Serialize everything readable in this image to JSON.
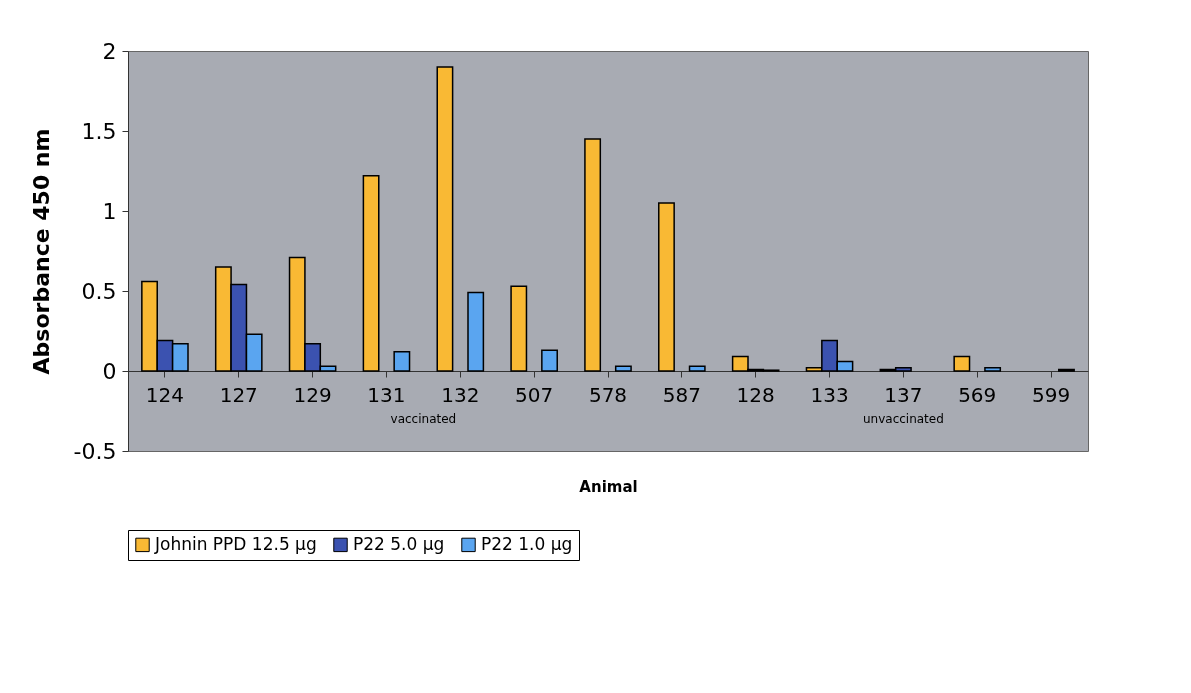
{
  "chart_data": {
    "type": "bar",
    "xlabel": "Animal",
    "ylabel": "Absorbance 450 nm",
    "categories": [
      "124",
      "127",
      "129",
      "131",
      "132",
      "507",
      "578",
      "587",
      "128",
      "133",
      "137",
      "569",
      "599"
    ],
    "series": [
      {
        "name": "Johnin PPD 12.5 µg",
        "color": "#f9b934",
        "values": [
          0.56,
          0.65,
          0.71,
          1.22,
          1.9,
          0.53,
          1.45,
          1.05,
          0.09,
          0.02,
          0.01,
          0.09,
          null
        ]
      },
      {
        "name": "P22 5.0 µg",
        "color": "#3b52b0",
        "values": [
          0.19,
          0.54,
          0.17,
          null,
          null,
          null,
          null,
          null,
          0.01,
          0.19,
          0.02,
          null,
          null
        ]
      },
      {
        "name": "P22 1.0 µg",
        "color": "#5aa5f0",
        "values": [
          0.17,
          0.23,
          0.03,
          0.12,
          0.49,
          0.13,
          0.03,
          0.03,
          0.005,
          0.06,
          null,
          0.02,
          0.01
        ]
      }
    ],
    "ylim": [
      -0.5,
      2
    ],
    "yticks": [
      -0.5,
      0,
      0.5,
      1,
      1.5,
      2
    ],
    "grid": false,
    "legend": "bottom",
    "annotations": [
      "vaccinated",
      "unvaccinated"
    ]
  }
}
